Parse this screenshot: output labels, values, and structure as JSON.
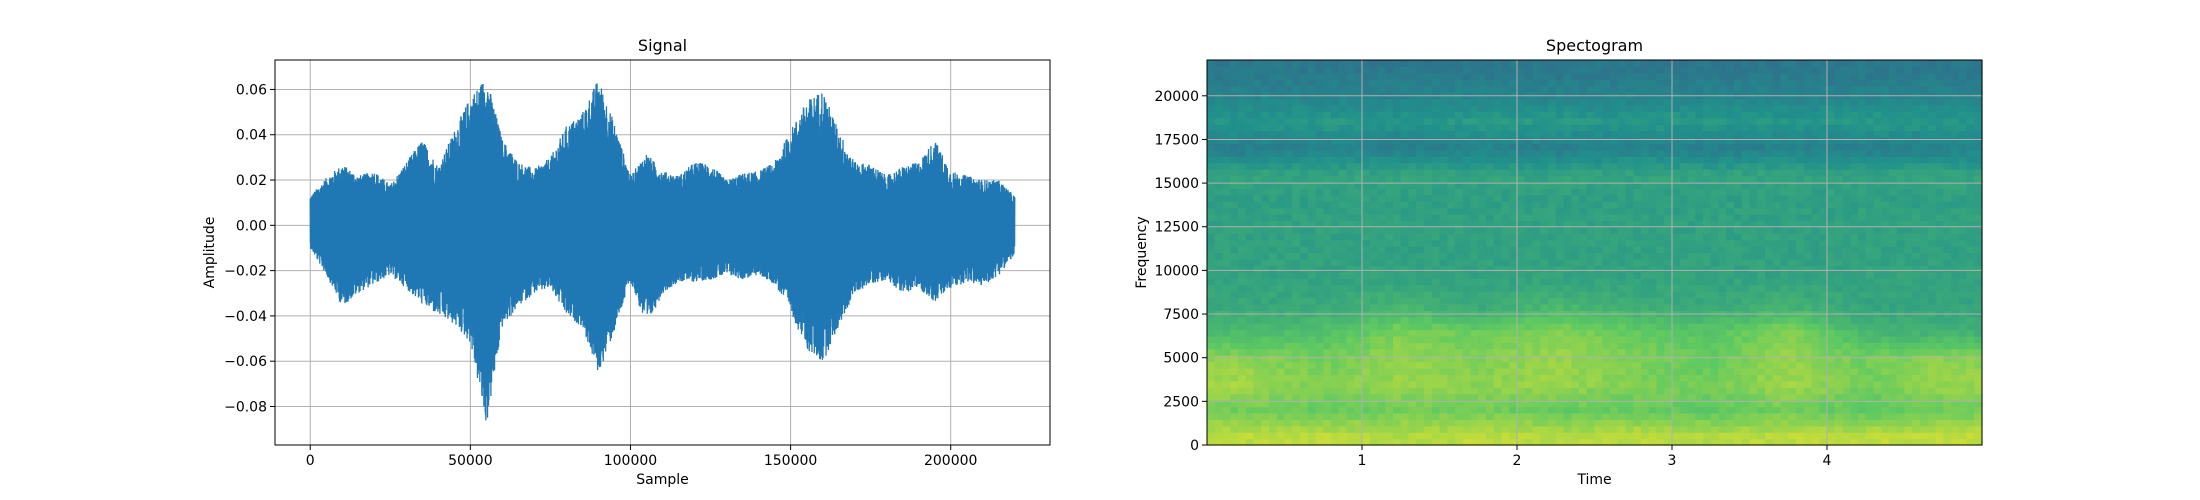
{
  "chart_data": [
    {
      "type": "line",
      "title": "Signal",
      "xlabel": "Sample",
      "ylabel": "Amplitude",
      "xlim": [
        -11000,
        231000
      ],
      "ylim": [
        -0.097,
        0.073
      ],
      "xticks": [
        0,
        50000,
        100000,
        150000,
        200000
      ],
      "xtick_labels": [
        "0",
        "50000",
        "100000",
        "150000",
        "200000"
      ],
      "yticks": [
        -0.08,
        -0.06,
        -0.04,
        -0.02,
        0.0,
        0.02,
        0.04,
        0.06
      ],
      "ytick_labels": [
        "−0.08",
        "−0.06",
        "−0.04",
        "−0.02",
        "0.00",
        "0.02",
        "0.04",
        "0.06"
      ],
      "grid": true,
      "color": "#1f77b4",
      "series": [
        {
          "x": [
            0,
            5000,
            10000,
            15000,
            20000,
            25000,
            30000,
            35000,
            40000,
            45000,
            50000,
            55000,
            60000,
            65000,
            70000,
            75000,
            80000,
            85000,
            90000,
            95000,
            100000,
            105000,
            110000,
            115000,
            120000,
            125000,
            130000,
            135000,
            140000,
            145000,
            150000,
            155000,
            160000,
            165000,
            170000,
            175000,
            180000,
            185000,
            190000,
            195000,
            200000,
            205000,
            210000,
            215000,
            220000
          ],
          "upper": [
            0.013,
            0.021,
            0.027,
            0.022,
            0.024,
            0.018,
            0.028,
            0.038,
            0.026,
            0.042,
            0.057,
            0.066,
            0.038,
            0.028,
            0.025,
            0.03,
            0.044,
            0.05,
            0.065,
            0.045,
            0.022,
            0.032,
            0.024,
            0.022,
            0.028,
            0.027,
            0.02,
            0.023,
            0.024,
            0.028,
            0.042,
            0.055,
            0.06,
            0.042,
            0.028,
            0.027,
            0.022,
            0.026,
            0.028,
            0.038,
            0.024,
            0.022,
            0.02,
            0.02,
            0.013
          ],
          "lower": [
            -0.01,
            -0.022,
            -0.036,
            -0.03,
            -0.026,
            -0.022,
            -0.028,
            -0.035,
            -0.04,
            -0.044,
            -0.052,
            -0.089,
            -0.045,
            -0.036,
            -0.03,
            -0.028,
            -0.04,
            -0.045,
            -0.066,
            -0.047,
            -0.025,
            -0.045,
            -0.03,
            -0.025,
            -0.025,
            -0.024,
            -0.022,
            -0.024,
            -0.022,
            -0.026,
            -0.038,
            -0.055,
            -0.061,
            -0.045,
            -0.03,
            -0.026,
            -0.024,
            -0.03,
            -0.028,
            -0.034,
            -0.028,
            -0.025,
            -0.027,
            -0.022,
            -0.013
          ]
        }
      ]
    },
    {
      "type": "heatmap",
      "title": "Spectogram",
      "xlabel": "Time",
      "ylabel": "Frequency",
      "xlim": [
        0.0,
        5.0
      ],
      "ylim": [
        0,
        22050
      ],
      "xticks": [
        1,
        2,
        3,
        4
      ],
      "xtick_labels": [
        "1",
        "2",
        "3",
        "4"
      ],
      "yticks": [
        0,
        2500,
        5000,
        7500,
        10000,
        12500,
        15000,
        17500,
        20000
      ],
      "ytick_labels": [
        "0",
        "2500",
        "5000",
        "7500",
        "10000",
        "12500",
        "15000",
        "17500",
        "20000"
      ],
      "grid": true,
      "colormap": "viridis",
      "time_bins": [
        0.25,
        0.75,
        1.25,
        1.75,
        2.25,
        2.75,
        3.25,
        3.75,
        4.25,
        4.75
      ],
      "frequency_bins": [
        500,
        2000,
        3500,
        5000,
        6500,
        8000,
        9500,
        11000,
        12500,
        14000,
        15500,
        17000,
        18500,
        20000,
        21500
      ],
      "level": [
        [
          0.9,
          0.9,
          0.88,
          0.9,
          0.88,
          0.9,
          0.88,
          0.9,
          0.9,
          0.9
        ],
        [
          0.78,
          0.76,
          0.78,
          0.78,
          0.76,
          0.76,
          0.74,
          0.78,
          0.74,
          0.78
        ],
        [
          0.86,
          0.8,
          0.84,
          0.82,
          0.85,
          0.8,
          0.78,
          0.86,
          0.78,
          0.84
        ],
        [
          0.82,
          0.78,
          0.84,
          0.8,
          0.84,
          0.8,
          0.76,
          0.84,
          0.78,
          0.82
        ],
        [
          0.68,
          0.7,
          0.8,
          0.76,
          0.82,
          0.76,
          0.72,
          0.82,
          0.66,
          0.64
        ],
        [
          0.6,
          0.6,
          0.66,
          0.6,
          0.66,
          0.62,
          0.6,
          0.64,
          0.58,
          0.58
        ],
        [
          0.58,
          0.58,
          0.58,
          0.58,
          0.58,
          0.58,
          0.58,
          0.58,
          0.58,
          0.58
        ],
        [
          0.57,
          0.57,
          0.57,
          0.57,
          0.57,
          0.57,
          0.57,
          0.57,
          0.57,
          0.57
        ],
        [
          0.57,
          0.57,
          0.57,
          0.57,
          0.57,
          0.57,
          0.57,
          0.57,
          0.57,
          0.57
        ],
        [
          0.56,
          0.56,
          0.56,
          0.56,
          0.56,
          0.56,
          0.56,
          0.56,
          0.56,
          0.56
        ],
        [
          0.58,
          0.58,
          0.58,
          0.58,
          0.58,
          0.58,
          0.58,
          0.58,
          0.58,
          0.58
        ],
        [
          0.42,
          0.44,
          0.42,
          0.44,
          0.42,
          0.44,
          0.42,
          0.44,
          0.42,
          0.44
        ],
        [
          0.52,
          0.54,
          0.52,
          0.54,
          0.54,
          0.52,
          0.54,
          0.52,
          0.54,
          0.52
        ],
        [
          0.45,
          0.45,
          0.45,
          0.45,
          0.45,
          0.45,
          0.45,
          0.45,
          0.45,
          0.45
        ],
        [
          0.4,
          0.4,
          0.4,
          0.4,
          0.4,
          0.4,
          0.4,
          0.4,
          0.4,
          0.4
        ]
      ]
    }
  ]
}
